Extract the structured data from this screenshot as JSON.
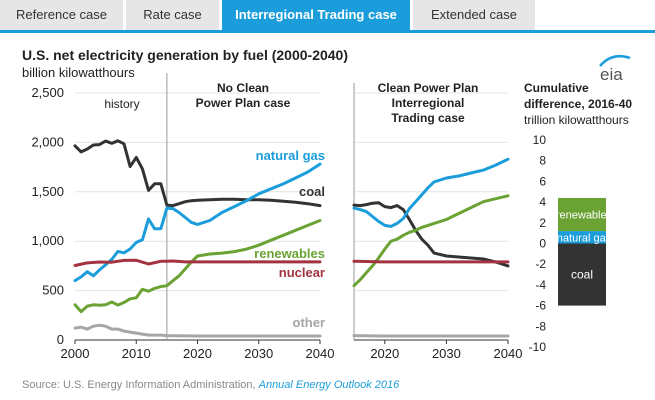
{
  "tabs": [
    {
      "label": "Reference case",
      "active": false
    },
    {
      "label": "Rate case",
      "active": false
    },
    {
      "label": "Interregional Trading case",
      "active": true
    },
    {
      "label": "Extended case",
      "active": false
    }
  ],
  "logo": "eia",
  "colors": {
    "coal": "#333333",
    "natural_gas": "#1b9ddb",
    "renewables": "#6aa334",
    "nuclear": "#a33340",
    "other": "#a6a6a6",
    "divider": "#999999"
  },
  "source": {
    "prefix": "Source: U.S. Energy Information Administration, ",
    "link": "Annual Energy Outlook 2016"
  },
  "chart_data": [
    {
      "id": "left",
      "type": "line",
      "title": "U.S. net electricity generation by fuel (2000-2040)",
      "ylabel": "billion kilowatthours",
      "xlim": [
        2000,
        2040
      ],
      "ylim": [
        0,
        2500
      ],
      "xticks": [
        "2000",
        "2010",
        "2020",
        "2030",
        "2040"
      ],
      "yticks": [
        "0",
        "500",
        "1,000",
        "1,500",
        "2,000",
        "2,500"
      ],
      "annotations": {
        "history": "history",
        "case_line1": "No Clean",
        "case_line2": "Power Plan case"
      },
      "divider_year": 2015,
      "series": [
        {
          "name": "coal",
          "label": "coal",
          "x": [
            2000,
            2001,
            2002,
            2003,
            2004,
            2005,
            2006,
            2007,
            2008,
            2009,
            2010,
            2011,
            2012,
            2013,
            2014,
            2015,
            2016,
            2017,
            2018,
            2019,
            2020,
            2022,
            2024,
            2026,
            2028,
            2030,
            2032,
            2034,
            2036,
            2038,
            2040
          ],
          "values": [
            1966,
            1904,
            1933,
            1974,
            1978,
            2013,
            1991,
            2016,
            1986,
            1756,
            1847,
            1733,
            1514,
            1581,
            1582,
            1365,
            1360,
            1380,
            1400,
            1410,
            1415,
            1420,
            1425,
            1425,
            1420,
            1420,
            1415,
            1405,
            1395,
            1380,
            1360
          ]
        },
        {
          "name": "natural_gas",
          "label": "natural gas",
          "x": [
            2000,
            2001,
            2002,
            2003,
            2004,
            2005,
            2006,
            2007,
            2008,
            2009,
            2010,
            2011,
            2012,
            2013,
            2014,
            2015,
            2016,
            2017,
            2018,
            2019,
            2020,
            2022,
            2024,
            2026,
            2028,
            2030,
            2032,
            2034,
            2036,
            2038,
            2040
          ],
          "values": [
            601,
            639,
            691,
            650,
            710,
            761,
            816,
            897,
            883,
            921,
            988,
            1014,
            1226,
            1125,
            1126,
            1335,
            1330,
            1290,
            1240,
            1190,
            1170,
            1210,
            1290,
            1350,
            1410,
            1480,
            1530,
            1580,
            1640,
            1700,
            1780
          ]
        },
        {
          "name": "renewables",
          "label": "renewables",
          "x": [
            2000,
            2001,
            2002,
            2003,
            2004,
            2005,
            2006,
            2007,
            2008,
            2009,
            2010,
            2011,
            2012,
            2013,
            2014,
            2015,
            2016,
            2017,
            2018,
            2019,
            2020,
            2022,
            2024,
            2026,
            2028,
            2030,
            2032,
            2034,
            2036,
            2038,
            2040
          ],
          "values": [
            356,
            287,
            343,
            356,
            351,
            357,
            385,
            353,
            380,
            417,
            427,
            513,
            494,
            522,
            540,
            550,
            600,
            650,
            720,
            790,
            850,
            870,
            880,
            895,
            920,
            960,
            1010,
            1060,
            1110,
            1160,
            1210
          ]
        },
        {
          "name": "nuclear",
          "label": "nuclear",
          "x": [
            2000,
            2002,
            2004,
            2006,
            2008,
            2010,
            2012,
            2014,
            2015,
            2016,
            2018,
            2020,
            2025,
            2030,
            2035,
            2040
          ],
          "values": [
            754,
            780,
            789,
            787,
            806,
            807,
            769,
            797,
            797,
            800,
            790,
            790,
            790,
            790,
            790,
            790
          ]
        },
        {
          "name": "other",
          "label": "other",
          "x": [
            2000,
            2001,
            2002,
            2003,
            2004,
            2005,
            2006,
            2007,
            2008,
            2009,
            2010,
            2011,
            2012,
            2013,
            2014,
            2015,
            2020,
            2025,
            2030,
            2035,
            2040
          ],
          "values": [
            120,
            130,
            110,
            140,
            150,
            140,
            110,
            110,
            90,
            80,
            70,
            60,
            50,
            50,
            50,
            45,
            40,
            40,
            40,
            40,
            40
          ]
        }
      ]
    },
    {
      "id": "right",
      "type": "line",
      "title_line1": "Clean Power Plan",
      "title_line2": "Interregional",
      "title_line3": "Trading case",
      "xlim": [
        2015,
        2040
      ],
      "ylim": [
        0,
        2500
      ],
      "xticks": [
        "2020",
        "2030",
        "2040"
      ],
      "series": [
        {
          "name": "coal",
          "x": [
            2015,
            2016,
            2017,
            2018,
            2019,
            2020,
            2021,
            2022,
            2023,
            2024,
            2025,
            2026,
            2027,
            2028,
            2030,
            2032,
            2034,
            2036,
            2038,
            2040
          ],
          "values": [
            1365,
            1360,
            1370,
            1385,
            1390,
            1350,
            1340,
            1360,
            1320,
            1220,
            1110,
            1020,
            960,
            880,
            850,
            840,
            830,
            820,
            790,
            750
          ]
        },
        {
          "name": "natural_gas",
          "x": [
            2015,
            2016,
            2017,
            2018,
            2019,
            2020,
            2021,
            2022,
            2023,
            2024,
            2025,
            2026,
            2027,
            2028,
            2030,
            2032,
            2034,
            2036,
            2038,
            2040
          ],
          "values": [
            1335,
            1320,
            1300,
            1250,
            1200,
            1160,
            1150,
            1180,
            1230,
            1330,
            1400,
            1470,
            1540,
            1600,
            1640,
            1660,
            1690,
            1720,
            1770,
            1830
          ]
        },
        {
          "name": "renewables",
          "x": [
            2015,
            2016,
            2017,
            2018,
            2019,
            2020,
            2021,
            2022,
            2023,
            2024,
            2025,
            2026,
            2027,
            2028,
            2030,
            2032,
            2034,
            2036,
            2038,
            2040
          ],
          "values": [
            550,
            610,
            680,
            750,
            830,
            920,
            1000,
            1020,
            1060,
            1090,
            1110,
            1140,
            1160,
            1180,
            1220,
            1280,
            1340,
            1400,
            1430,
            1460
          ]
        },
        {
          "name": "nuclear",
          "x": [
            2015,
            2020,
            2025,
            2030,
            2035,
            2040
          ],
          "values": [
            797,
            790,
            790,
            790,
            790,
            790
          ]
        },
        {
          "name": "other",
          "x": [
            2015,
            2020,
            2025,
            2030,
            2035,
            2040
          ],
          "values": [
            45,
            40,
            40,
            40,
            40,
            40
          ]
        }
      ]
    },
    {
      "id": "cumulative",
      "type": "bar",
      "title_line1": "Cumulative",
      "title_line2": "difference, 2016-40",
      "ylabel": "trillion kilowatthours",
      "ylim": [
        -10,
        10
      ],
      "yticks": [
        "-10",
        "-8",
        "-6",
        "-4",
        "-2",
        "0",
        "2",
        "4",
        "6",
        "8",
        "10"
      ],
      "segments": [
        {
          "name": "coal",
          "label": "coal",
          "value": -6.0
        },
        {
          "name": "natural_gas",
          "label": "natural gas",
          "value": 1.2
        },
        {
          "name": "renewables",
          "label": "renewables",
          "value": 3.2
        }
      ]
    }
  ]
}
